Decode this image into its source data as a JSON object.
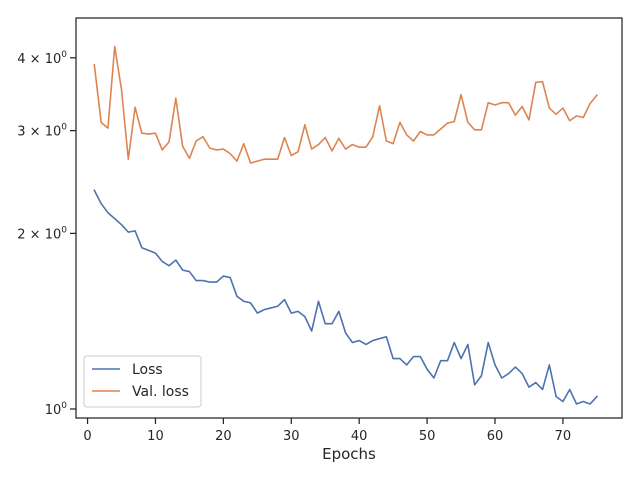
{
  "chart_data": {
    "type": "line",
    "xlabel": "Epochs",
    "ylabel": "",
    "yscale": "log",
    "xlim": [
      -1.7,
      78.7
    ],
    "ylim": [
      0.965,
      4.68
    ],
    "grid": false,
    "legend_position": "lower-left",
    "x_ticks": [
      {
        "value": 0,
        "label": "0"
      },
      {
        "value": 10,
        "label": "10"
      },
      {
        "value": 20,
        "label": "20"
      },
      {
        "value": 30,
        "label": "30"
      },
      {
        "value": 40,
        "label": "40"
      },
      {
        "value": 50,
        "label": "50"
      },
      {
        "value": 60,
        "label": "60"
      },
      {
        "value": 70,
        "label": "70"
      }
    ],
    "y_ticks": [
      {
        "value": 1,
        "base": "10",
        "exp": "0"
      },
      {
        "value": 2,
        "base": "2 × 10",
        "exp": "0"
      },
      {
        "value": 3,
        "base": "3 × 10",
        "exp": "0"
      },
      {
        "value": 4,
        "base": "4 × 10",
        "exp": "0"
      }
    ],
    "series": [
      {
        "name": "Loss",
        "color": "#4c72b0",
        "x": [
          1,
          2,
          3,
          4,
          5,
          6,
          7,
          8,
          9,
          10,
          11,
          12,
          13,
          14,
          15,
          16,
          17,
          18,
          19,
          20,
          21,
          22,
          23,
          24,
          25,
          26,
          27,
          28,
          29,
          30,
          31,
          32,
          33,
          34,
          35,
          36,
          37,
          38,
          39,
          40,
          41,
          42,
          43,
          44,
          45,
          46,
          47,
          48,
          49,
          50,
          51,
          52,
          53,
          54,
          55,
          56,
          57,
          58,
          59,
          60,
          61,
          62,
          63,
          64,
          65,
          66,
          67,
          68,
          69,
          70,
          71,
          72,
          73,
          74,
          75
        ],
        "values": [
          2.37,
          2.25,
          2.17,
          2.12,
          2.07,
          2.01,
          2.02,
          1.89,
          1.87,
          1.85,
          1.79,
          1.76,
          1.8,
          1.73,
          1.72,
          1.66,
          1.66,
          1.65,
          1.65,
          1.69,
          1.68,
          1.56,
          1.53,
          1.52,
          1.46,
          1.48,
          1.49,
          1.5,
          1.54,
          1.46,
          1.47,
          1.44,
          1.36,
          1.53,
          1.4,
          1.4,
          1.47,
          1.35,
          1.3,
          1.31,
          1.29,
          1.31,
          1.32,
          1.33,
          1.22,
          1.22,
          1.19,
          1.23,
          1.23,
          1.17,
          1.13,
          1.21,
          1.21,
          1.3,
          1.22,
          1.29,
          1.1,
          1.14,
          1.3,
          1.19,
          1.13,
          1.15,
          1.18,
          1.15,
          1.09,
          1.11,
          1.08,
          1.19,
          1.05,
          1.03,
          1.08,
          1.02,
          1.03,
          1.02,
          1.05
        ]
      },
      {
        "name": "Val. loss",
        "color": "#dd8452",
        "x": [
          1,
          2,
          3,
          4,
          5,
          6,
          7,
          8,
          9,
          10,
          11,
          12,
          13,
          14,
          15,
          16,
          17,
          18,
          19,
          20,
          21,
          22,
          23,
          24,
          25,
          26,
          27,
          28,
          29,
          30,
          31,
          32,
          33,
          34,
          35,
          36,
          37,
          38,
          39,
          40,
          41,
          42,
          43,
          44,
          45,
          46,
          47,
          48,
          49,
          50,
          51,
          52,
          53,
          54,
          55,
          56,
          57,
          58,
          59,
          60,
          61,
          62,
          63,
          64,
          65,
          66,
          67,
          68,
          69,
          70,
          71,
          72,
          73,
          74,
          75
        ],
        "values": [
          3.89,
          3.1,
          3.03,
          4.18,
          3.53,
          2.68,
          3.29,
          2.97,
          2.96,
          2.97,
          2.78,
          2.87,
          3.41,
          2.82,
          2.69,
          2.88,
          2.93,
          2.8,
          2.78,
          2.79,
          2.74,
          2.66,
          2.85,
          2.64,
          2.66,
          2.68,
          2.68,
          2.68,
          2.92,
          2.72,
          2.76,
          3.07,
          2.79,
          2.84,
          2.92,
          2.77,
          2.91,
          2.79,
          2.84,
          2.81,
          2.81,
          2.93,
          3.31,
          2.88,
          2.85,
          3.1,
          2.95,
          2.88,
          2.99,
          2.95,
          2.95,
          3.02,
          3.09,
          3.11,
          3.46,
          3.1,
          3.01,
          3.01,
          3.35,
          3.32,
          3.35,
          3.35,
          3.19,
          3.3,
          3.13,
          3.63,
          3.64,
          3.28,
          3.2,
          3.28,
          3.12,
          3.18,
          3.16,
          3.34,
          3.45
        ]
      }
    ]
  }
}
